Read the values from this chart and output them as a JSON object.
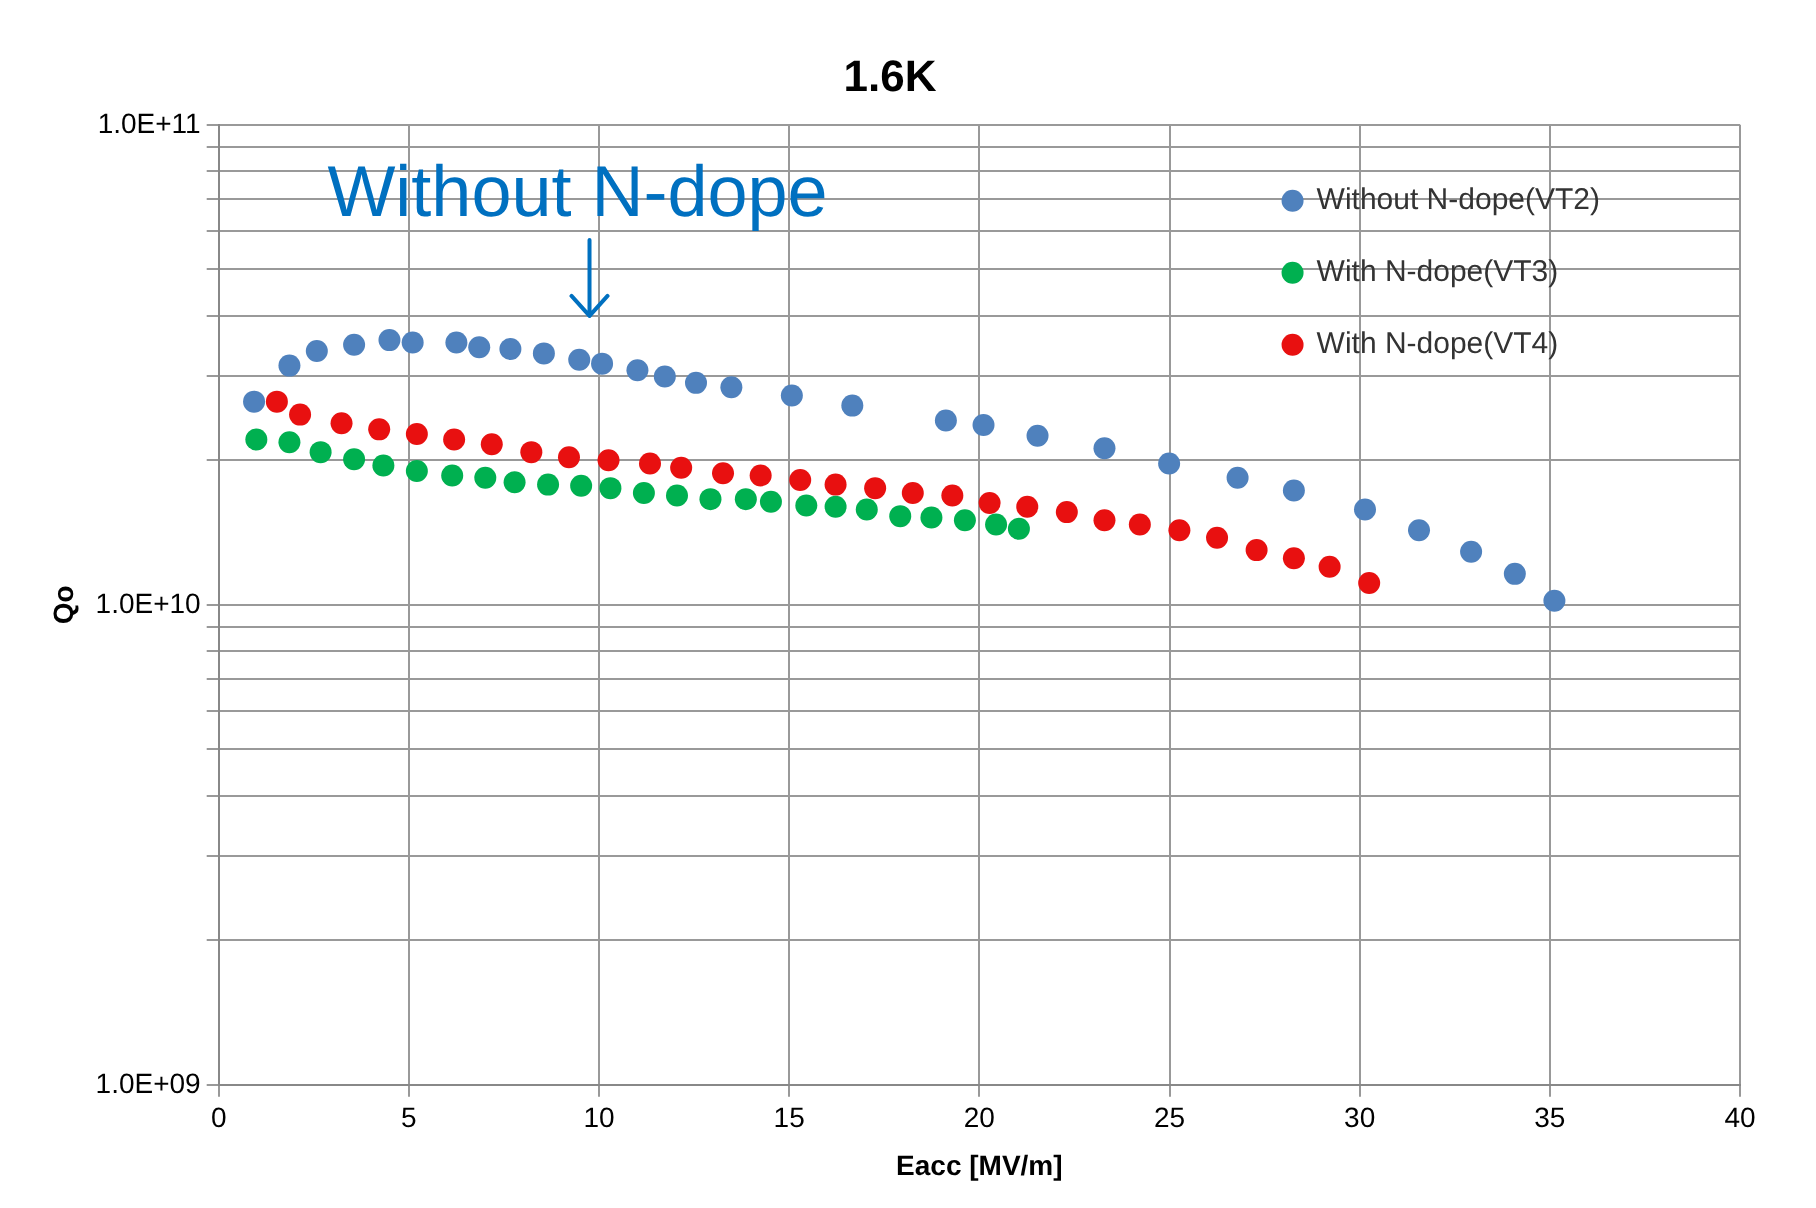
{
  "chart_data": {
    "type": "scatter",
    "title": "1.6K",
    "xlabel": "Eacc [MV/m]",
    "ylabel": "Qo",
    "annotations": [
      {
        "text": "Without N-dope",
        "x": 9.75,
        "y": 33000000000.0
      }
    ],
    "xlim": [
      0,
      40
    ],
    "xticks": [
      0,
      5,
      10,
      15,
      20,
      25,
      30,
      35,
      40
    ],
    "ylim": [
      1000000000.0,
      100000000000.0
    ],
    "log": "y",
    "yticks": [
      {
        "value": 1000000000.0,
        "label": "1.0E+09"
      },
      {
        "value": 2000000000.0,
        "label": null
      },
      {
        "value": 3000000000.0,
        "label": null
      },
      {
        "value": 4000000000.0,
        "label": null
      },
      {
        "value": 5000000000.0,
        "label": null
      },
      {
        "value": 6000000000.0,
        "label": null
      },
      {
        "value": 7000000000.0,
        "label": null
      },
      {
        "value": 8000000000.0,
        "label": null
      },
      {
        "value": 9000000000.0,
        "label": null
      },
      {
        "value": 10000000000.0,
        "label": "1.0E+10"
      },
      {
        "value": 20000000000.0,
        "label": null
      },
      {
        "value": 30000000000.0,
        "label": null
      },
      {
        "value": 40000000000.0,
        "label": null
      },
      {
        "value": 50000000000.0,
        "label": null
      },
      {
        "value": 60000000000.0,
        "label": null
      },
      {
        "value": 70000000000.0,
        "label": null
      },
      {
        "value": 80000000000.0,
        "label": null
      },
      {
        "value": 90000000000.0,
        "label": null
      },
      {
        "value": 100000000000.0,
        "label": "1.0E+11"
      }
    ],
    "grid": true,
    "legend": "top right",
    "marker": "circle",
    "series": [
      {
        "name": "Without N-dope(VT2)",
        "color": "#4f81bd",
        "x": [
          0.93,
          1.86,
          2.58,
          3.56,
          4.49,
          5.1,
          6.25,
          6.85,
          7.67,
          8.55,
          9.48,
          10.08,
          11.01,
          11.73,
          12.55,
          13.48,
          15.07,
          16.66,
          19.12,
          20.11,
          21.53,
          23.29,
          24.99,
          26.79,
          28.27,
          30.14,
          31.56,
          32.93,
          34.08,
          35.12
        ],
        "values": [
          26500000000.0,
          31500000000.0,
          33800000000.0,
          34800000000.0,
          35600000000.0,
          35200000000.0,
          35200000000.0,
          34400000000.0,
          34100000000.0,
          33400000000.0,
          32400000000.0,
          31800000000.0,
          30800000000.0,
          29900000000.0,
          29000000000.0,
          28400000000.0,
          27300000000.0,
          26000000000.0,
          24200000000.0,
          23700000000.0,
          22500000000.0,
          21200000000.0,
          19700000000.0,
          18400000000.0,
          17300000000.0,
          15800000000.0,
          14300000000.0,
          12900000000.0,
          11600000000.0,
          10200000000.0
        ]
      },
      {
        "name": "With N-dope(VT3)",
        "color": "#00b050",
        "x": [
          0.99,
          1.86,
          2.68,
          3.56,
          4.33,
          5.21,
          6.14,
          7.01,
          7.78,
          8.66,
          9.53,
          10.3,
          11.18,
          12.05,
          12.93,
          13.86,
          14.52,
          15.45,
          16.22,
          17.04,
          17.92,
          18.74,
          19.62,
          20.44,
          21.04
        ],
        "values": [
          22100000000.0,
          21800000000.0,
          20800000000.0,
          20100000000.0,
          19500000000.0,
          19000000000.0,
          18600000000.0,
          18400000000.0,
          18000000000.0,
          17800000000.0,
          17700000000.0,
          17500000000.0,
          17100000000.0,
          16900000000.0,
          16600000000.0,
          16600000000.0,
          16400000000.0,
          16100000000.0,
          16000000000.0,
          15800000000.0,
          15300000000.0,
          15200000000.0,
          15000000000.0,
          14700000000.0,
          14400000000.0
        ]
      },
      {
        "name": "With N-dope(VT4)",
        "color": "#e81010",
        "x": [
          1.53,
          2.14,
          3.23,
          4.22,
          5.21,
          6.19,
          7.18,
          8.22,
          9.21,
          10.25,
          11.34,
          12.16,
          13.26,
          14.25,
          15.29,
          16.22,
          17.26,
          18.25,
          19.29,
          20.27,
          21.26,
          22.3,
          23.29,
          24.22,
          25.26,
          26.25,
          27.29,
          28.27,
          29.21,
          30.25
        ],
        "values": [
          26500000000.0,
          24900000000.0,
          23900000000.0,
          23200000000.0,
          22700000000.0,
          22100000000.0,
          21600000000.0,
          20800000000.0,
          20300000000.0,
          20000000000.0,
          19700000000.0,
          19300000000.0,
          18800000000.0,
          18600000000.0,
          18200000000.0,
          17800000000.0,
          17500000000.0,
          17100000000.0,
          16900000000.0,
          16300000000.0,
          16000000000.0,
          15600000000.0,
          15000000000.0,
          14700000000.0,
          14300000000.0,
          13800000000.0,
          13000000000.0,
          12500000000.0,
          12000000000.0,
          11100000000.0
        ]
      }
    ]
  }
}
